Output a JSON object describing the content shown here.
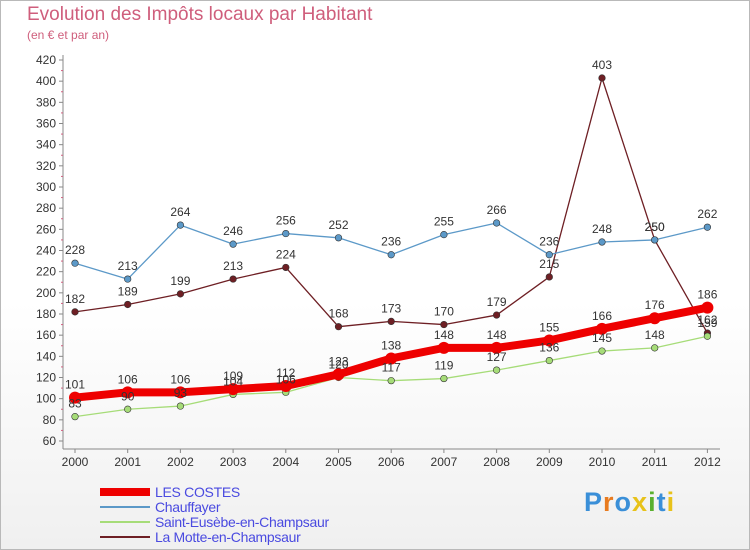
{
  "title": "Evolution des Impôts locaux par Habitant",
  "subtitle": "(en € et par an)",
  "logo": {
    "text": "Proxiti",
    "colors": [
      "#3a8fd8",
      "#e87b1f",
      "#3a8fd8",
      "#e8c21a",
      "#5ab02e",
      "#3a8fd8",
      "#e8c21a"
    ]
  },
  "chart_data": {
    "type": "line",
    "x": [
      "2000",
      "2001",
      "2002",
      "2003",
      "2004",
      "2005",
      "2006",
      "2007",
      "2008",
      "2009",
      "2010",
      "2011",
      "2012"
    ],
    "ylim": [
      60,
      420
    ],
    "yticks": [
      60,
      80,
      100,
      120,
      140,
      160,
      180,
      200,
      220,
      240,
      260,
      280,
      300,
      320,
      340,
      360,
      380,
      400,
      420
    ],
    "grid": false,
    "legend_position": "bottom-left",
    "series": [
      {
        "name": "La Motte-en-Champsaur",
        "color": "#6e1f24",
        "values": [
          182,
          189,
          199,
          213,
          224,
          168,
          173,
          170,
          179,
          215,
          403,
          250,
          162
        ]
      },
      {
        "name": "Chauffayer",
        "color": "#5c99c8",
        "values": [
          228,
          213,
          264,
          246,
          256,
          252,
          236,
          255,
          266,
          236,
          248,
          250,
          262
        ]
      },
      {
        "name": "Saint-Eusèbe-en-Champsaur",
        "color": "#a6dc78",
        "values": [
          83,
          90,
          93,
          104,
          106,
          120,
          117,
          119,
          127,
          136,
          145,
          148,
          159
        ]
      },
      {
        "name": "LES COSTES",
        "color": "#ee0000",
        "values": [
          101,
          106,
          106,
          109,
          112,
          123,
          138,
          148,
          148,
          155,
          166,
          176,
          186
        ]
      }
    ]
  },
  "legend": [
    {
      "label": "LES COSTES",
      "color": "#ee0000",
      "thickness": 8
    },
    {
      "label": "Chauffayer",
      "color": "#5c99c8",
      "thickness": 2
    },
    {
      "label": "Saint-Eusèbe-en-Champsaur",
      "color": "#a6dc78",
      "thickness": 2
    },
    {
      "label": "La Motte-en-Champsaur",
      "color": "#6e1f24",
      "thickness": 2
    }
  ]
}
